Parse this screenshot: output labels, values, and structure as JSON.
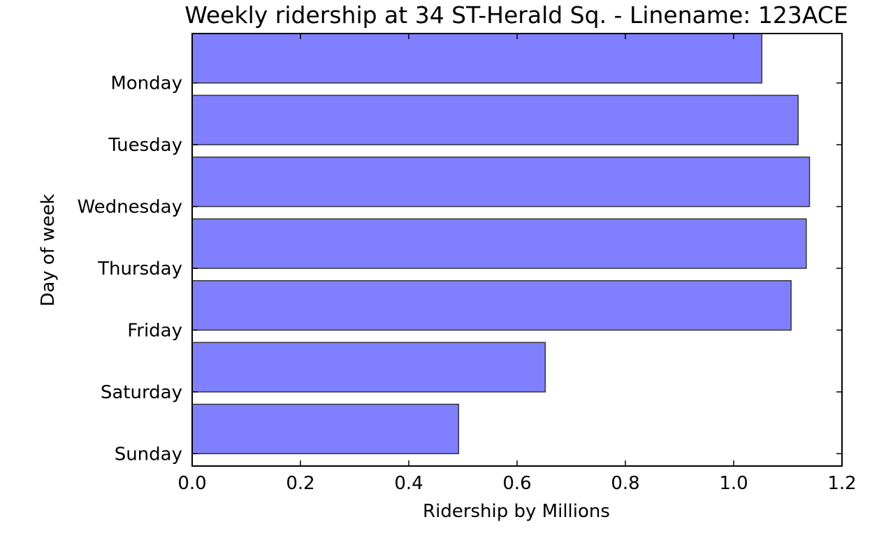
{
  "chart_data": {
    "type": "bar",
    "orientation": "horizontal",
    "title": "Weekly ridership at 34 ST-Herald Sq. - Linename: 123ACE",
    "xlabel": "Ridership by Millions",
    "ylabel": "Day of week",
    "categories": [
      "Monday",
      "Tuesday",
      "Wednesday",
      "Thursday",
      "Friday",
      "Saturday",
      "Sunday"
    ],
    "values": [
      1.052,
      1.119,
      1.14,
      1.134,
      1.106,
      0.652,
      0.492
    ],
    "xlim": [
      0.0,
      1.2
    ],
    "xticks": [
      "0.0",
      "0.2",
      "0.4",
      "0.6",
      "0.8",
      "1.0",
      "1.2"
    ],
    "bar_color": "#8080ff",
    "bar_edge_color": "#333333",
    "grid": false
  }
}
